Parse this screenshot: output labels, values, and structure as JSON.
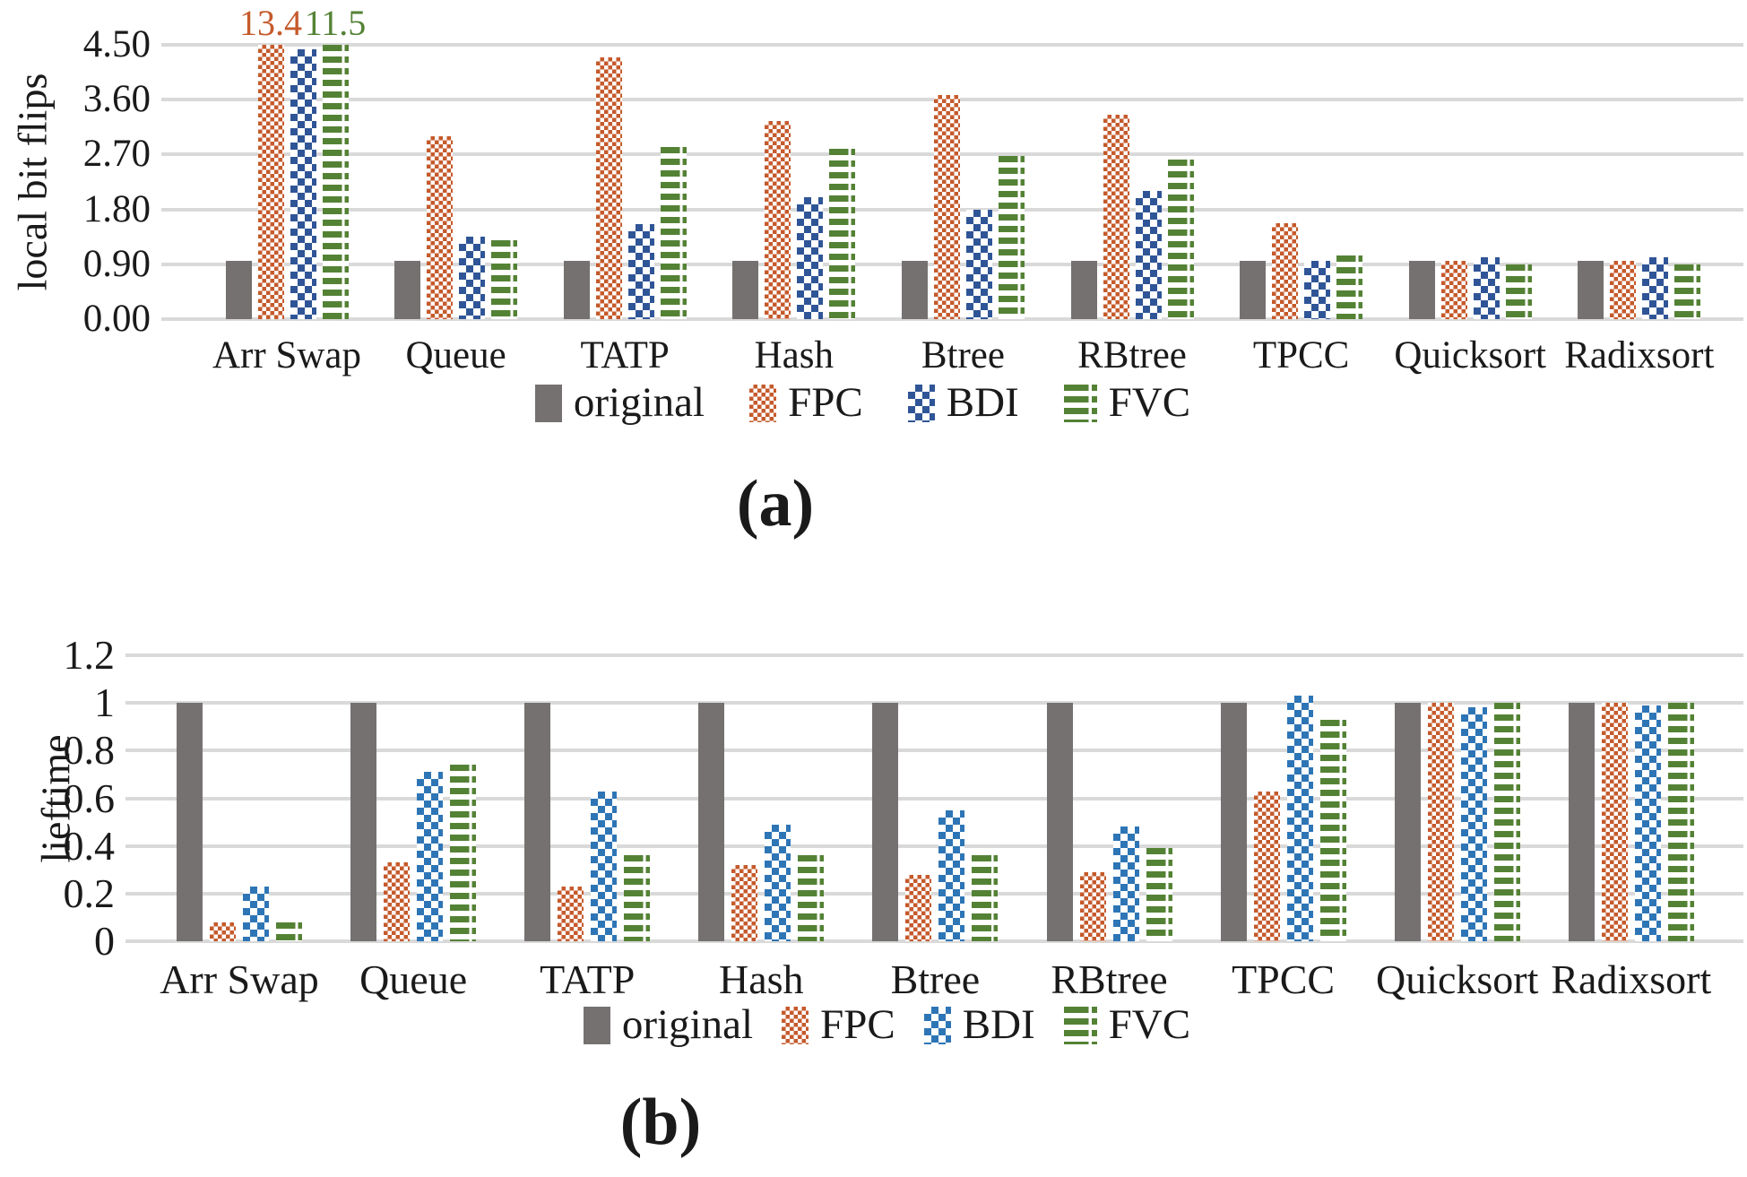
{
  "chart_data": [
    {
      "id": "a",
      "type": "bar",
      "caption": "(a)",
      "ylabel": "local bit flips",
      "ylim": [
        0,
        4.5
      ],
      "yticks": [
        4.5,
        3.6,
        2.7,
        1.8,
        0.9,
        0
      ],
      "ytick_labels": [
        "4.50",
        "3.60",
        "2.70",
        "1.80",
        "0.90",
        "0.00"
      ],
      "grid": true,
      "legend_position": "bottom",
      "categories": [
        "Arr Swap",
        "Queue",
        "TATP",
        "Hash",
        "Btree",
        "RBtree",
        "TPCC",
        "Quicksort",
        "Radixsort"
      ],
      "series": [
        {
          "name": "original",
          "color": "#767171",
          "pattern": "solid",
          "values": [
            0.95,
            0.95,
            0.95,
            0.95,
            0.95,
            0.95,
            0.95,
            0.95,
            0.95
          ]
        },
        {
          "name": "FPC",
          "color": "#C55A2B",
          "pattern": "checker-small",
          "values": [
            13.4,
            3.0,
            4.3,
            3.25,
            3.67,
            3.35,
            1.58,
            0.95,
            0.95
          ]
        },
        {
          "name": "BDI",
          "color": "#2F5597",
          "pattern": "checker-large",
          "values": [
            4.43,
            1.36,
            1.56,
            2.0,
            1.8,
            2.1,
            0.95,
            1.02,
            1.02
          ]
        },
        {
          "name": "FVC",
          "color": "#548235",
          "pattern": "hstripes",
          "values": [
            11.5,
            1.3,
            2.83,
            2.8,
            2.68,
            2.62,
            1.05,
            0.9,
            0.9
          ]
        }
      ],
      "annotations": [
        {
          "text": "13.4",
          "category_index": 0,
          "series_index": 1,
          "color": "#C55A2B"
        },
        {
          "text": "11.5",
          "category_index": 0,
          "series_index": 3,
          "color": "#548235"
        }
      ],
      "legend": [
        "original",
        "FPC",
        "BDI",
        "FVC"
      ]
    },
    {
      "id": "b",
      "type": "bar",
      "caption": "(b)",
      "ylabel": "lieftime",
      "ylim": [
        0,
        1.2
      ],
      "yticks": [
        1.2,
        1.0,
        0.8,
        0.6,
        0.4,
        0.2,
        0
      ],
      "ytick_labels": [
        "1.2",
        "1",
        "0.8",
        "0.6",
        "0.4",
        "0.2",
        "0"
      ],
      "grid": true,
      "legend_position": "bottom",
      "categories": [
        "Arr Swap",
        "Queue",
        "TATP",
        "Hash",
        "Btree",
        "RBtree",
        "TPCC",
        "Quicksort",
        "Radixsort"
      ],
      "series": [
        {
          "name": "original",
          "color": "#767171",
          "pattern": "solid",
          "values": [
            1.0,
            1.0,
            1.0,
            1.0,
            1.0,
            1.0,
            1.0,
            1.0,
            1.0
          ]
        },
        {
          "name": "FPC",
          "color": "#C55A2B",
          "pattern": "checker-small",
          "values": [
            0.08,
            0.33,
            0.23,
            0.32,
            0.28,
            0.29,
            0.63,
            1.0,
            1.0
          ]
        },
        {
          "name": "BDI",
          "color": "#2E75B6",
          "pattern": "checker-large",
          "values": [
            0.23,
            0.71,
            0.63,
            0.49,
            0.55,
            0.48,
            1.03,
            0.98,
            0.99
          ]
        },
        {
          "name": "FVC",
          "color": "#548235",
          "pattern": "hstripes",
          "values": [
            0.08,
            0.74,
            0.36,
            0.36,
            0.36,
            0.39,
            0.93,
            1.0,
            1.0
          ]
        }
      ],
      "annotations": [],
      "legend": [
        "original",
        "FPC",
        "BDI",
        "FVC"
      ]
    }
  ],
  "colors": {
    "gridline": "#D9D9D9",
    "original": "#767171",
    "fpc_orange": "#C55A2B",
    "bdi_blue_top": "#2F5597",
    "bdi_blue_bottom": "#2E75B6",
    "fvc_green": "#548235"
  }
}
